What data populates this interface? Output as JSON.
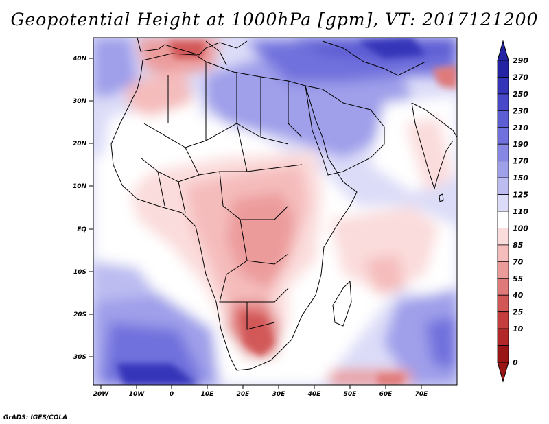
{
  "title": "Geopotential Height at 1000hPa [gpm], VT: 2017121200",
  "credit": "GrADS: IGES/COLA",
  "map": {
    "lat_labels": [
      "40N",
      "30N",
      "20N",
      "10N",
      "EQ",
      "10S",
      "20S",
      "30S"
    ],
    "lon_labels": [
      "20W",
      "10W",
      "0",
      "10E",
      "20E",
      "30E",
      "40E",
      "50E",
      "60E",
      "70E"
    ],
    "lat_range": [
      -37,
      45
    ],
    "lon_range": [
      -23,
      79
    ]
  },
  "colorbar": {
    "labels": [
      "290",
      "270",
      "250",
      "230",
      "210",
      "190",
      "170",
      "150",
      "125",
      "110",
      "100",
      "85",
      "70",
      "55",
      "40",
      "25",
      "10",
      "0"
    ],
    "colors": [
      "#2323a3",
      "#3434b9",
      "#4848c8",
      "#5d5dd4",
      "#7171dd",
      "#8787e4",
      "#9f9fea",
      "#bcbcf1",
      "#dcdcf8",
      "#ffffff",
      "#fbdcdc",
      "#f5bcbc",
      "#ec9b9b",
      "#e07a7a",
      "#d25858",
      "#c53d3d",
      "#b22828",
      "#9a1515"
    ]
  }
}
